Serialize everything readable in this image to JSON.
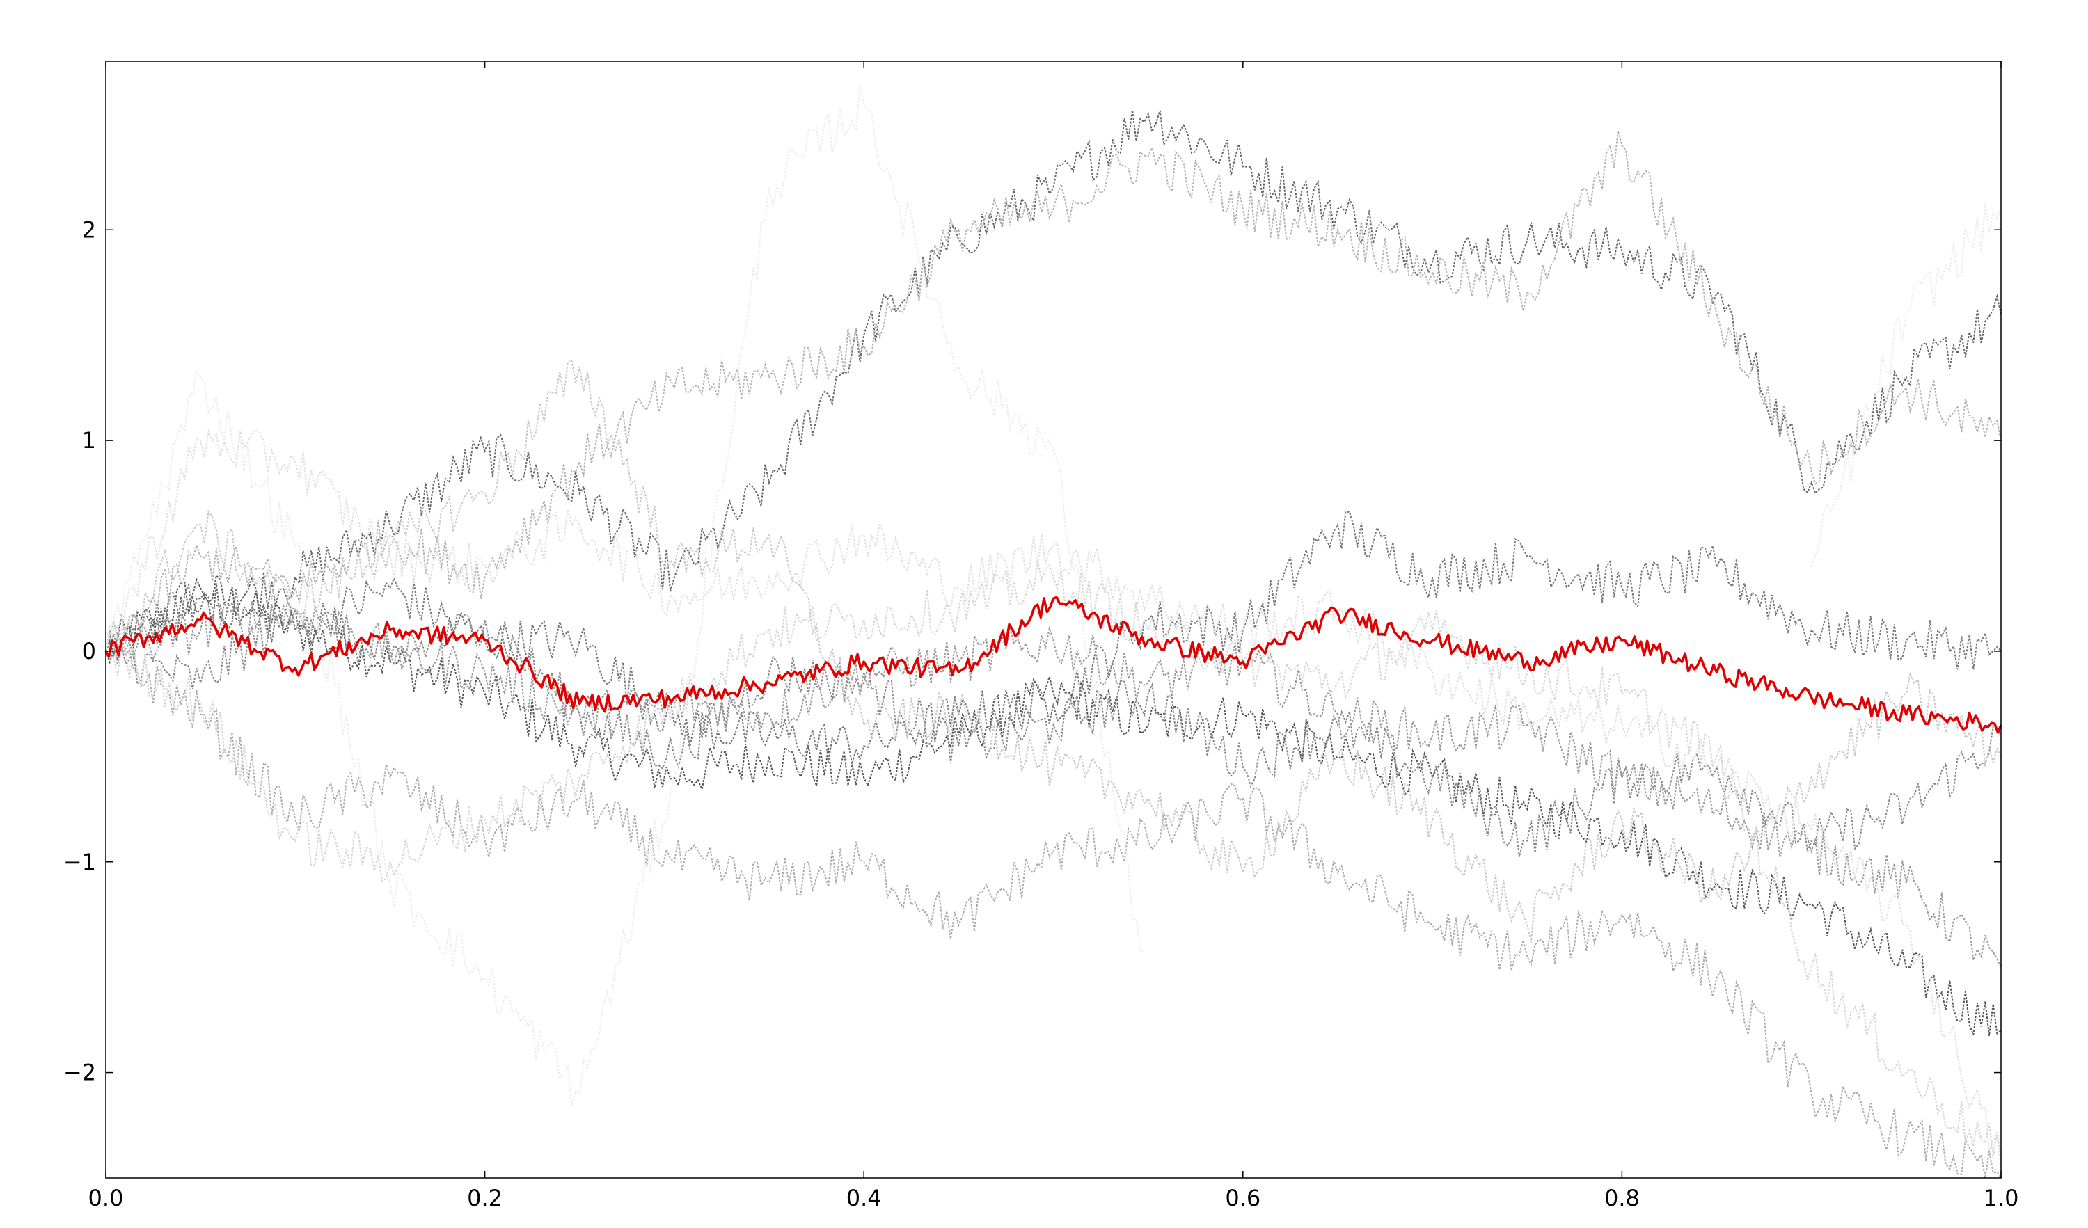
{
  "chart_data": {
    "type": "line",
    "title": "",
    "xlabel": "",
    "ylabel": "",
    "xlim": [
      0.0,
      1.0
    ],
    "ylim": [
      -2.5,
      2.8
    ],
    "grid": false,
    "legend": "none",
    "x_ticks": [
      {
        "value": 0.0,
        "label": "0.0"
      },
      {
        "value": 0.2,
        "label": "0.2"
      },
      {
        "value": 0.4,
        "label": "0.4"
      },
      {
        "value": 0.6,
        "label": "0.6"
      },
      {
        "value": 0.8,
        "label": "0.8"
      },
      {
        "value": 1.0,
        "label": "1.0"
      }
    ],
    "y_ticks": [
      {
        "value": -2,
        "label": "−2"
      },
      {
        "value": -1,
        "label": "−1"
      },
      {
        "value": 0,
        "label": "0"
      },
      {
        "value": 1,
        "label": "1"
      },
      {
        "value": 2,
        "label": "2"
      }
    ],
    "x": [
      0.0,
      0.05,
      0.1,
      0.15,
      0.2,
      0.25,
      0.3,
      0.35,
      0.4,
      0.45,
      0.5,
      0.55,
      0.6,
      0.65,
      0.7,
      0.75,
      0.8,
      0.85,
      0.9,
      0.95,
      1.0
    ],
    "highlight": {
      "color": "#e00000",
      "values": [
        0.0,
        0.15,
        -0.08,
        0.1,
        0.05,
        -0.25,
        -0.22,
        -0.15,
        -0.05,
        -0.1,
        0.25,
        0.05,
        -0.05,
        0.18,
        0.05,
        -0.05,
        0.05,
        -0.1,
        -0.22,
        -0.3,
        -0.35
      ]
    },
    "series": [
      {
        "color": "#555555",
        "values": [
          0.0,
          0.3,
          0.1,
          -0.05,
          -0.2,
          -0.45,
          -0.6,
          -0.5,
          -0.6,
          -0.4,
          -0.2,
          -0.35,
          -0.3,
          -0.5,
          -0.6,
          -0.75,
          -0.85,
          -1.1,
          -1.2,
          -1.5,
          -1.8
        ]
      },
      {
        "color": "#666666",
        "values": [
          0.0,
          0.2,
          0.35,
          0.6,
          0.95,
          0.75,
          0.35,
          0.8,
          1.5,
          1.95,
          2.2,
          2.55,
          2.3,
          2.1,
          1.85,
          1.95,
          1.9,
          1.7,
          0.8,
          1.3,
          1.6
        ]
      },
      {
        "color": "#777777",
        "values": [
          0.0,
          0.25,
          0.1,
          0.3,
          0.05,
          0.05,
          -0.35,
          -0.4,
          -0.45,
          -0.3,
          -0.25,
          0.15,
          0.1,
          0.6,
          0.35,
          0.45,
          0.3,
          0.4,
          0.1,
          0.05,
          0.0
        ]
      },
      {
        "color": "#888888",
        "values": [
          0.0,
          -0.15,
          0.2,
          -0.05,
          0.15,
          -0.3,
          -0.5,
          -0.1,
          -0.15,
          -0.45,
          -0.35,
          -0.2,
          -0.55,
          -0.35,
          -0.6,
          -0.9,
          -0.6,
          -0.55,
          -0.9,
          -0.75,
          -0.4
        ]
      },
      {
        "color": "#999999",
        "values": [
          0.0,
          0.1,
          0.2,
          0.0,
          -0.1,
          -0.3,
          -0.25,
          -0.3,
          -0.1,
          -0.05,
          0.05,
          -0.15,
          -0.05,
          -0.3,
          -0.4,
          -0.35,
          -0.6,
          -0.75,
          -0.95,
          -1.1,
          -1.5
        ]
      },
      {
        "color": "#aaaaaa",
        "values": [
          0.0,
          -0.3,
          -0.8,
          -0.6,
          -0.9,
          -0.7,
          -1.0,
          -1.1,
          -1.0,
          -1.3,
          -0.95,
          -0.9,
          -0.7,
          -1.05,
          -1.3,
          -1.45,
          -1.25,
          -1.55,
          -2.1,
          -2.3,
          -2.5
        ]
      },
      {
        "color": "#b3b3b3",
        "values": [
          0.0,
          0.45,
          0.3,
          0.55,
          0.35,
          0.9,
          1.25,
          1.3,
          1.45,
          2.0,
          2.1,
          2.35,
          2.1,
          2.0,
          1.8,
          1.7,
          2.4,
          1.6,
          0.85,
          1.25,
          1.0
        ]
      },
      {
        "color": "#c8c8c8",
        "values": [
          0.0,
          0.6,
          0.2,
          0.5,
          0.75,
          1.35,
          0.4,
          0.55,
          -0.35,
          -0.3,
          -0.55,
          -0.7,
          -1.05,
          -0.5,
          -0.8,
          -1.3,
          -0.8,
          -1.15,
          -0.6,
          -0.2,
          -0.5
        ]
      },
      {
        "color": "#d5d5d5",
        "values": [
          0.0,
          -0.25,
          -0.9,
          -1.0,
          -0.8,
          -0.6,
          -0.25,
          0.1,
          0.15,
          0.2,
          0.35,
          0.1,
          -0.05,
          -0.15,
          0.1,
          -0.1,
          -0.2,
          -0.5,
          -1.5,
          -2.0,
          -2.4
        ]
      },
      {
        "color": "#e0e0e0",
        "values": [
          0.0,
          1.0,
          0.9,
          0.45,
          0.4,
          0.6,
          0.25,
          0.35,
          0.55,
          0.3,
          0.5,
          0.25,
          0.1,
          0.2,
          -0.1,
          -0.3,
          -0.35,
          -0.55,
          -0.85,
          -1.3,
          -2.45
        ]
      },
      {
        "color": "#ececec",
        "values": [
          0.0,
          1.3,
          0.5,
          -1.1,
          -1.55,
          -2.1,
          -0.6,
          2.2,
          2.6,
          1.35,
          0.95,
          -1.6,
          null,
          null,
          null,
          null,
          null,
          null,
          0.4,
          1.6,
          2.1
        ]
      }
    ]
  }
}
